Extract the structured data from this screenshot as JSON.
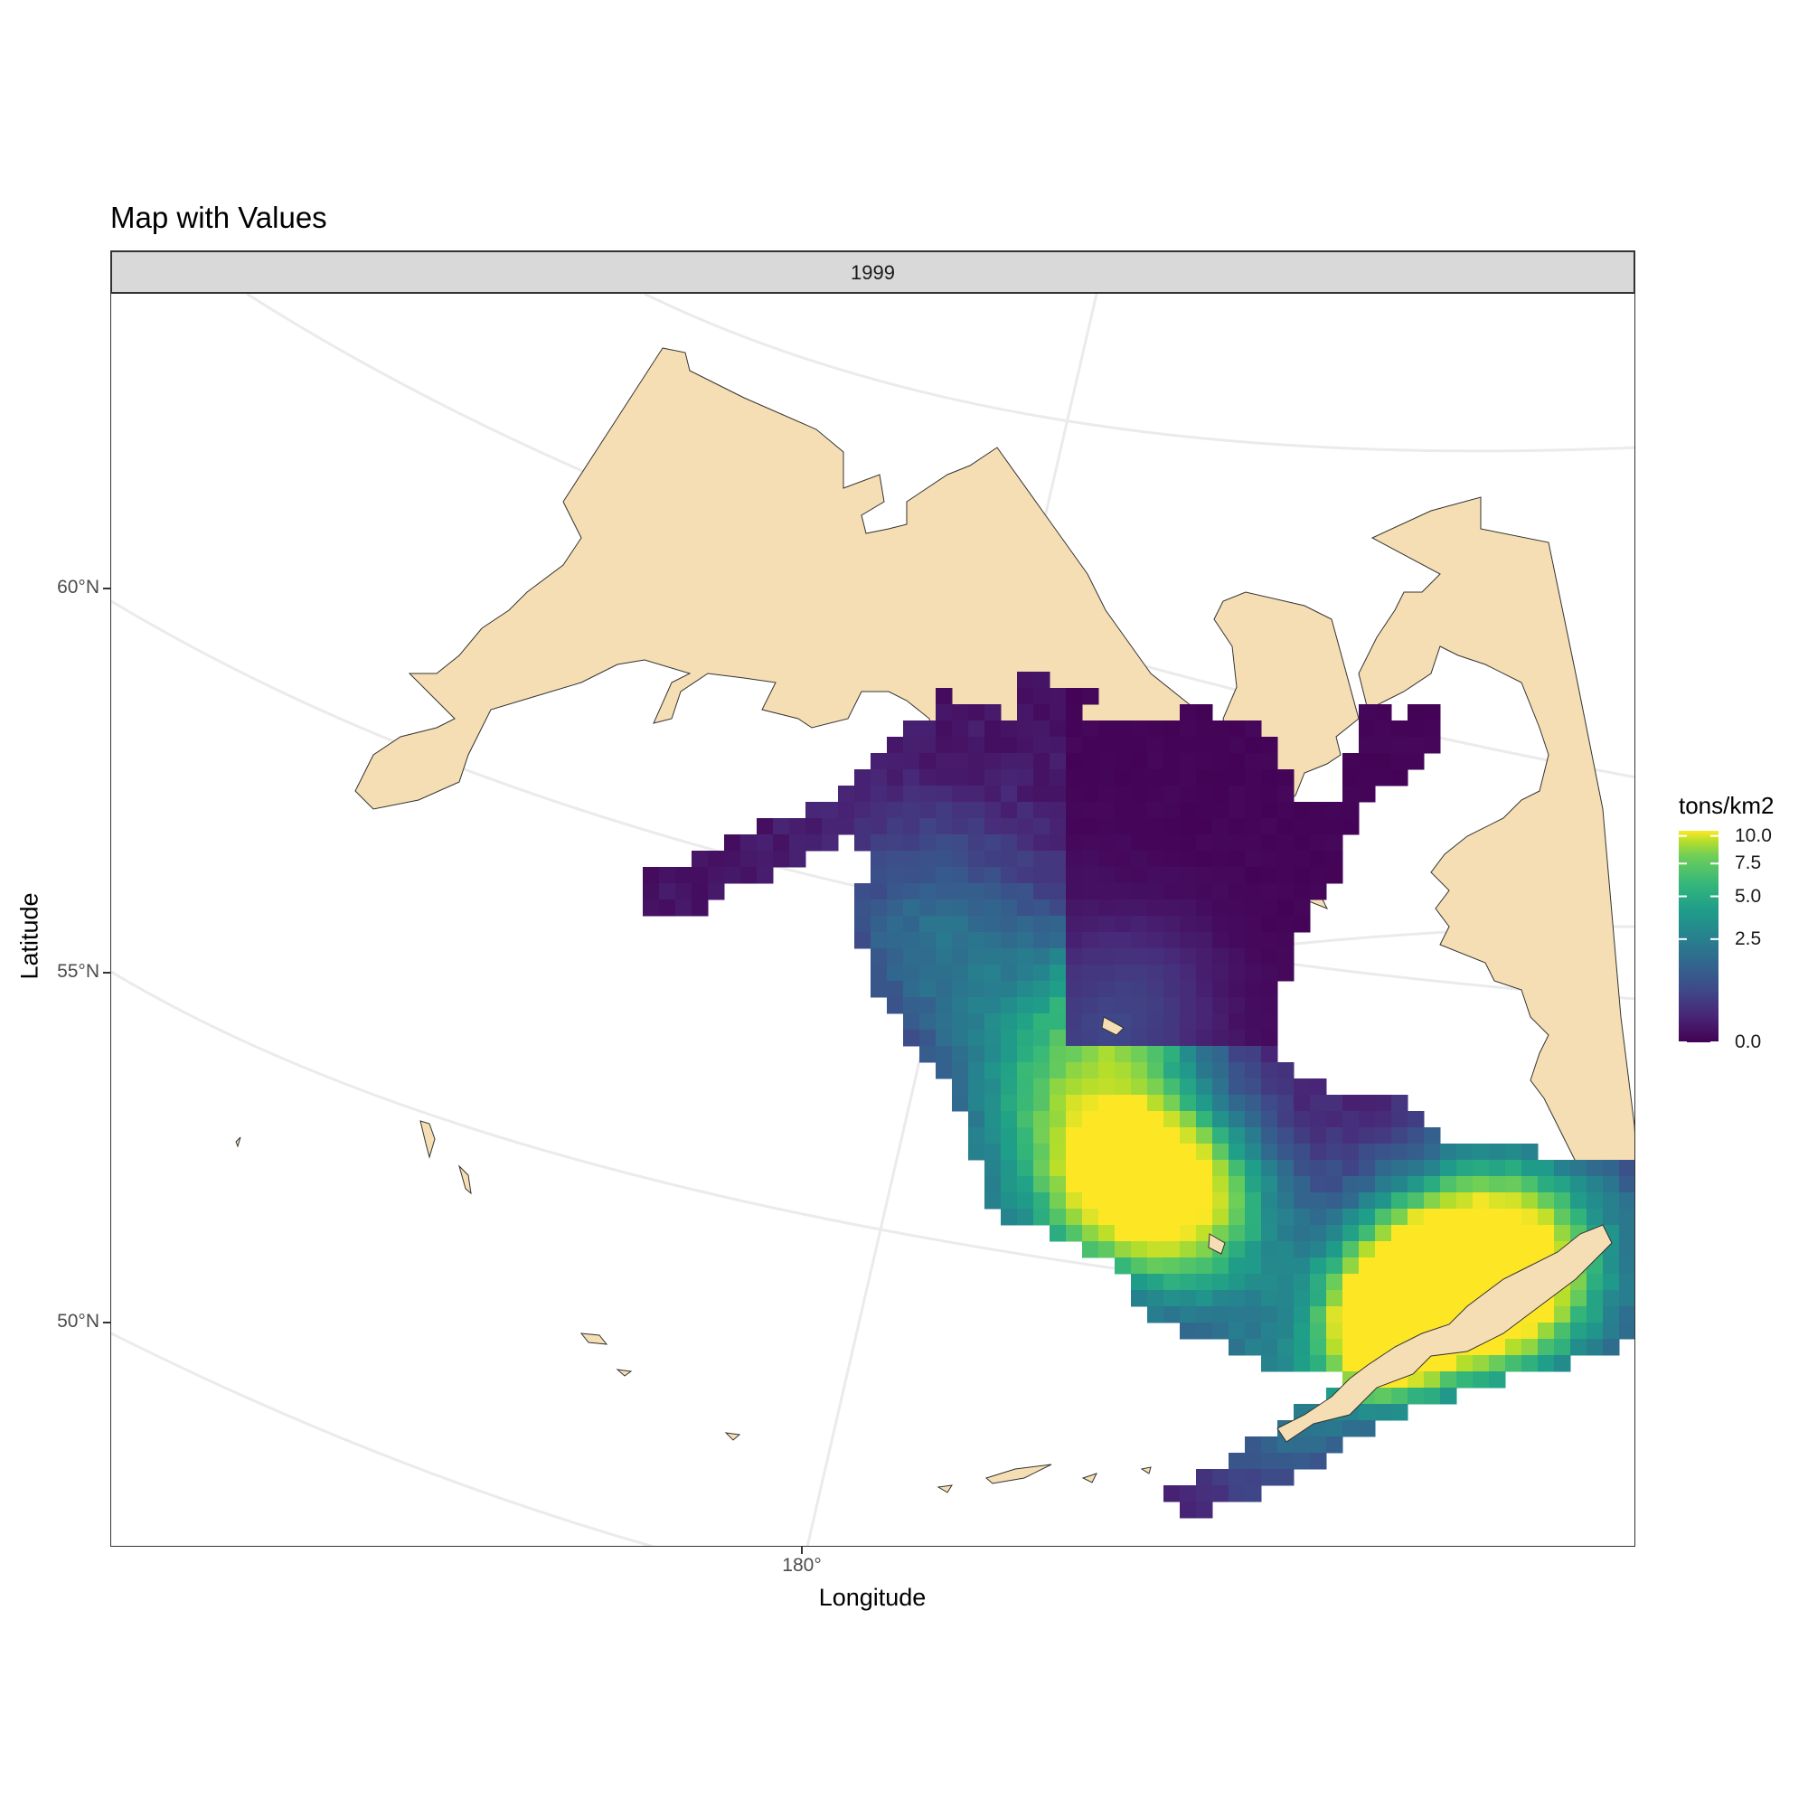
{
  "chart_data": {
    "type": "heatmap",
    "title": "Map with Values",
    "facet": "1999",
    "xlabel": "Longitude",
    "ylabel": "Latitude",
    "x_ticks": [
      "180°"
    ],
    "y_ticks": [
      "60°N",
      "55°N",
      "50°N"
    ],
    "legend": {
      "title": "tons/km2",
      "scale": "viridis",
      "ticks": [
        "10.0",
        "7.5",
        "5.0",
        "2.5",
        "0.0"
      ],
      "tick_values": [
        10,
        7.5,
        5,
        2.5,
        0
      ],
      "range": [
        0,
        10.5
      ]
    },
    "land_color": "#f5deb3",
    "grid": "on"
  }
}
